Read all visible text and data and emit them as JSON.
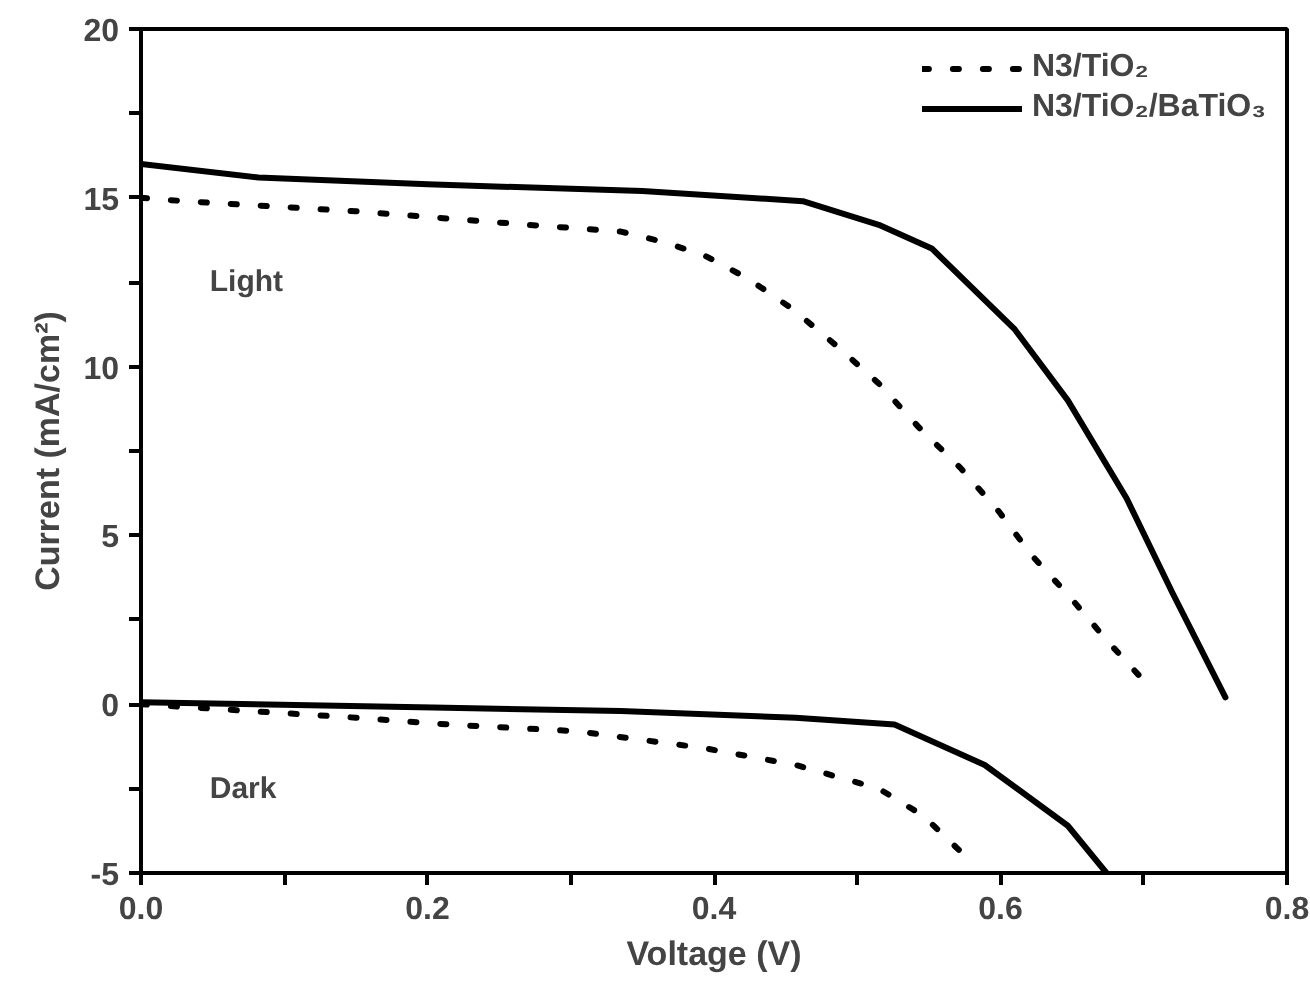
{
  "chart_data": {
    "type": "line",
    "xlabel": "Voltage (V)",
    "ylabel": "Current (mA/cm²)",
    "xlim": [
      0,
      0.8
    ],
    "ylim": [
      -5,
      20
    ],
    "xticks": [
      {
        "value": 0,
        "label": "0.0"
      },
      {
        "value": 0.1,
        "label": null
      },
      {
        "value": 0.2,
        "label": "0.2"
      },
      {
        "value": 0.3,
        "label": null
      },
      {
        "value": 0.4,
        "label": "0.4"
      },
      {
        "value": 0.5,
        "label": null
      },
      {
        "value": 0.6,
        "label": "0.6"
      },
      {
        "value": 0.7,
        "label": null
      },
      {
        "value": 0.8,
        "label": "0.8"
      }
    ],
    "yticks": [
      -5,
      {
        "value": -2.5,
        "label": null
      },
      0,
      {
        "value": 2.5,
        "label": null
      },
      5,
      {
        "value": 7.5,
        "label": null
      },
      10,
      {
        "value": 12.5,
        "label": null
      },
      15,
      {
        "value": 17.5,
        "label": null
      },
      20
    ],
    "grid": false,
    "legend": "top right",
    "annotations": [
      "Light",
      "Dark"
    ],
    "series": [
      {
        "name": "N3/TiO₂",
        "color": "#000000",
        "line_style": "dotted",
        "x": [
          0,
          0.03,
          0.15,
          0.27,
          0.335,
          0.364,
          0.393,
          0.424,
          0.455,
          0.486,
          0.515,
          0.543,
          0.572,
          0.599,
          0.622,
          0.648,
          0.674,
          0.7
        ],
        "values": [
          15.0,
          14.9,
          14.6,
          14.2,
          14.0,
          13.7,
          13.3,
          12.6,
          11.7,
          10.6,
          9.5,
          8.2,
          7.0,
          5.7,
          4.4,
          3.2,
          1.9,
          0.7
        ]
      },
      {
        "name": "N3/TiO₂/BaTiO₃",
        "color": "#000000",
        "line_style": "solid",
        "x": [
          0,
          0.082,
          0.2,
          0.35,
          0.462,
          0.515,
          0.552,
          0.61,
          0.647,
          0.688,
          0.72,
          0.757
        ],
        "values": [
          16.0,
          15.6,
          15.4,
          15.2,
          14.9,
          14.2,
          13.5,
          11.1,
          9.0,
          6.1,
          3.3,
          0.2
        ]
      },
      {
        "color": "#000000",
        "line_style": "dotted",
        "x": [
          0,
          0.15,
          0.214,
          0.304,
          0.393,
          0.457,
          0.515,
          0.546,
          0.573
        ],
        "values": [
          0,
          -0.4,
          -0.6,
          -0.8,
          -1.3,
          -1.8,
          -2.5,
          -3.3,
          -4.4
        ]
      },
      {
        "color": "#000000",
        "line_style": "solid",
        "x": [
          0,
          0.204,
          0.335,
          0.457,
          0.526,
          0.589,
          0.647,
          0.674
        ],
        "values": [
          0.06,
          -0.1,
          -0.2,
          -0.4,
          -0.6,
          -1.8,
          -3.6,
          -5.0
        ]
      }
    ]
  }
}
